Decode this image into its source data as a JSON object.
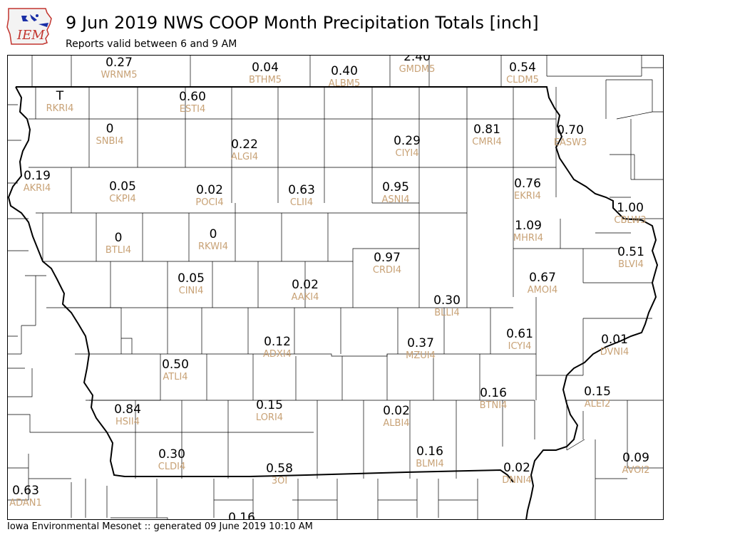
{
  "header": {
    "logo_text": "IEM",
    "title": "9 Jun 2019 NWS COOP Month Precipitation Totals [inch]",
    "subtitle": "Reports valid between 6 and 9 AM"
  },
  "footer": {
    "text": "Iowa Environmental Mesonet :: generated 09 June 2019 10:10 AM"
  },
  "stations": [
    {
      "id": "WRNM5",
      "value": "0.27"
    },
    {
      "id": "BTHM5",
      "value": "0.04"
    },
    {
      "id": "ALBM5",
      "value": "0.40"
    },
    {
      "id": "GMDM5",
      "value": "2.40"
    },
    {
      "id": "CLDM5",
      "value": "0.54"
    },
    {
      "id": "RKRI4",
      "value": "T"
    },
    {
      "id": "ESTI4",
      "value": "0.60"
    },
    {
      "id": "SNBI4",
      "value": "0"
    },
    {
      "id": "ALGI4",
      "value": "0.22"
    },
    {
      "id": "CIYI4",
      "value": "0.29"
    },
    {
      "id": "CMRI4",
      "value": "0.81"
    },
    {
      "id": "EASW3",
      "value": "0.70"
    },
    {
      "id": "AKRI4",
      "value": "0.19"
    },
    {
      "id": "CKPI4",
      "value": "0.05"
    },
    {
      "id": "POCI4",
      "value": "0.02"
    },
    {
      "id": "CLII4",
      "value": "0.63"
    },
    {
      "id": "ASNI4",
      "value": "0.95"
    },
    {
      "id": "EKRI4",
      "value": "0.76"
    },
    {
      "id": "CBLW3",
      "value": "1.00"
    },
    {
      "id": "MHRI4",
      "value": "1.09"
    },
    {
      "id": "BTLI4",
      "value": "0"
    },
    {
      "id": "RKWI4",
      "value": "0"
    },
    {
      "id": "BLVI4",
      "value": "0.51"
    },
    {
      "id": "CRDI4",
      "value": "0.97"
    },
    {
      "id": "AMOI4",
      "value": "0.67"
    },
    {
      "id": "CINI4",
      "value": "0.05"
    },
    {
      "id": "AAKI4",
      "value": "0.02"
    },
    {
      "id": "BLLI4",
      "value": "0.30"
    },
    {
      "id": "ICYI4",
      "value": "0.61"
    },
    {
      "id": "DVNI4",
      "value": "0.01"
    },
    {
      "id": "ADXI4",
      "value": "0.12"
    },
    {
      "id": "MZUI4",
      "value": "0.37"
    },
    {
      "id": "ATLI4",
      "value": "0.50"
    },
    {
      "id": "BTNI4",
      "value": "0.16"
    },
    {
      "id": "ALEI2",
      "value": "0.15"
    },
    {
      "id": "HSII4",
      "value": "0.84"
    },
    {
      "id": "LORI4",
      "value": "0.15"
    },
    {
      "id": "ALBI4",
      "value": "0.02"
    },
    {
      "id": "CLDI4",
      "value": "0.30"
    },
    {
      "id": "BLMI4",
      "value": "0.16"
    },
    {
      "id": "AVOI2",
      "value": "0.09"
    },
    {
      "id": "3OI",
      "value": "0.58"
    },
    {
      "id": "DNNI4",
      "value": "0.02"
    },
    {
      "id": "ADAN1",
      "value": "0.63"
    },
    {
      "id": "",
      "value": "0.16"
    }
  ]
}
